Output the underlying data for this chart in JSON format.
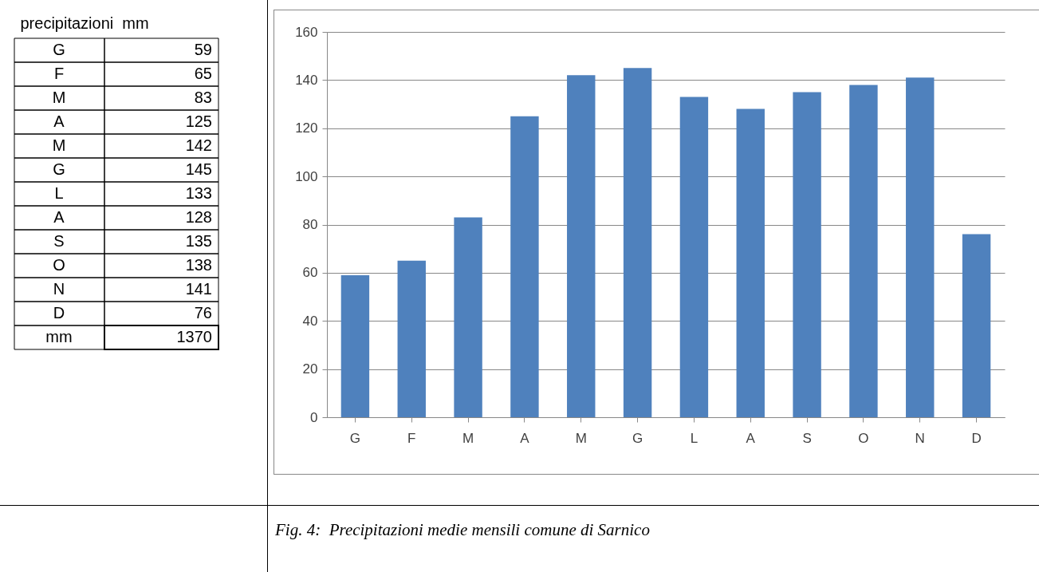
{
  "chart_data": [
    {
      "type": "other",
      "title": "precipitazioni  mm",
      "categories": [
        "G",
        "F",
        "M",
        "A",
        "M",
        "G",
        "L",
        "A",
        "S",
        "O",
        "N",
        "D"
      ],
      "values": [
        59,
        65,
        83,
        125,
        142,
        145,
        133,
        128,
        135,
        138,
        141,
        76
      ],
      "data_labels": true,
      "annotations": [
        "mm",
        "1370"
      ]
    },
    {
      "type": "bar",
      "categories": [
        "G",
        "F",
        "M",
        "A",
        "M",
        "G",
        "L",
        "A",
        "S",
        "O",
        "N",
        "D"
      ],
      "values": [
        59,
        65,
        83,
        125,
        142,
        145,
        133,
        128,
        135,
        138,
        141,
        76
      ],
      "color": "#4f81bd",
      "ylim": [
        0,
        160
      ],
      "yticks": [
        0,
        20,
        40,
        60,
        80,
        100,
        120,
        140,
        160
      ],
      "grid": "y",
      "annotations": [
        "Fig. 4:  Precipitazioni medie mensili comune di Sarnico"
      ]
    }
  ]
}
